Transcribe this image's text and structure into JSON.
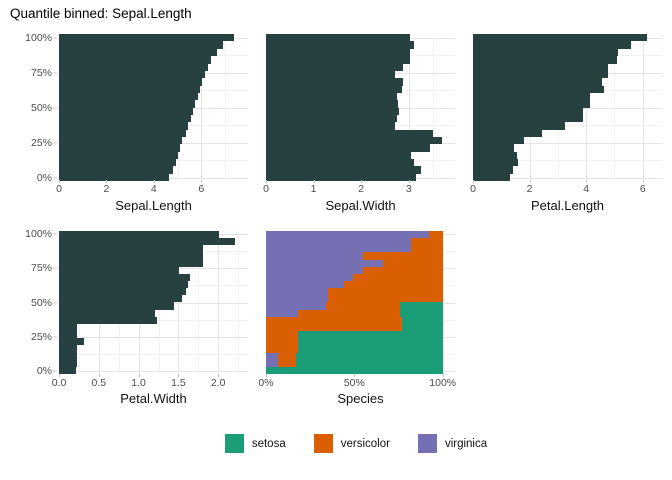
{
  "chart_data": {
    "type": "bar",
    "title": "Quantile binned: Sepal.Length",
    "orientation": "horizontal",
    "description": "Five faceted horizontal bar panels; y axis = Sepal.Length quantile bins (20 bins of 5%, 0% bottom to 100% top). First four panels show the bin value of each numeric variable; the Species panel shows the species composition of each bin as a 100% stacked bar.",
    "bar_color": "#26413f",
    "grid": "on",
    "y_ticks": [
      {
        "p": 0,
        "label": "0%"
      },
      {
        "p": 25,
        "label": "25%"
      },
      {
        "p": 50,
        "label": "50%"
      },
      {
        "p": 75,
        "label": "75%"
      },
      {
        "p": 100,
        "label": "100%"
      }
    ],
    "bin_labels_bottom_to_top": [
      "0-5%",
      "5-10%",
      "10-15%",
      "15-20%",
      "20-25%",
      "25-30%",
      "30-35%",
      "35-40%",
      "40-45%",
      "45-50%",
      "50-55%",
      "55-60%",
      "60-65%",
      "65-70%",
      "70-75%",
      "75-80%",
      "80-85%",
      "85-90%",
      "90-95%",
      "95-100%"
    ],
    "panels": [
      {
        "xlabel": "Sepal.Length",
        "xmax": 7.97,
        "x_ticks": [
          {
            "v": 0,
            "label": "0"
          },
          {
            "v": 2,
            "label": "2"
          },
          {
            "v": 4,
            "label": "4"
          },
          {
            "v": 6,
            "label": "6"
          }
        ],
        "x_minor": [
          1,
          3,
          5,
          7
        ],
        "values": [
          4.65,
          4.8,
          4.95,
          5.0,
          5.1,
          5.2,
          5.35,
          5.45,
          5.55,
          5.65,
          5.75,
          5.85,
          5.95,
          6.05,
          6.15,
          6.28,
          6.4,
          6.65,
          6.9,
          7.4
        ]
      },
      {
        "xlabel": "Sepal.Width",
        "xmax": 3.97,
        "x_ticks": [
          {
            "v": 0,
            "label": "0"
          },
          {
            "v": 1,
            "label": "1"
          },
          {
            "v": 2,
            "label": "2"
          },
          {
            "v": 3,
            "label": "3"
          }
        ],
        "x_minor": [
          0.5,
          1.5,
          2.5,
          3.5
        ],
        "values": [
          3.15,
          3.25,
          3.1,
          3.05,
          3.45,
          3.7,
          3.5,
          2.7,
          2.75,
          2.8,
          2.78,
          2.75,
          2.85,
          2.88,
          2.72,
          2.87,
          3.03,
          3.03,
          3.11,
          3.03
        ]
      },
      {
        "xlabel": "Petal.Length",
        "xmax": 6.68,
        "x_ticks": [
          {
            "v": 0,
            "label": "0"
          },
          {
            "v": 2,
            "label": "2"
          },
          {
            "v": 4,
            "label": "4"
          },
          {
            "v": 6,
            "label": "6"
          }
        ],
        "x_minor": [
          1,
          3,
          5
        ],
        "values": [
          1.3,
          1.4,
          1.6,
          1.55,
          1.45,
          1.8,
          2.45,
          3.25,
          3.9,
          3.9,
          4.13,
          4.13,
          4.63,
          4.56,
          4.77,
          4.77,
          5.08,
          5.12,
          5.57,
          6.15
        ]
      },
      {
        "xlabel": "Petal.Width",
        "xmax": 2.374,
        "x_ticks": [
          {
            "v": 0,
            "label": "0.0"
          },
          {
            "v": 0.5,
            "label": "0.5"
          },
          {
            "v": 1.0,
            "label": "1.0"
          },
          {
            "v": 1.5,
            "label": "1.5"
          },
          {
            "v": 2.0,
            "label": "2.0"
          }
        ],
        "x_minor": [
          0.25,
          0.75,
          1.25,
          1.75,
          2.25
        ],
        "values": [
          0.21,
          0.22,
          0.22,
          0.22,
          0.31,
          0.22,
          0.22,
          1.23,
          1.21,
          1.44,
          1.55,
          1.6,
          1.62,
          1.65,
          1.51,
          1.81,
          1.81,
          1.81,
          2.21,
          2.01
        ]
      },
      {
        "xlabel": "Species",
        "stacked": true,
        "bar_span_fraction": 0.935,
        "x_ticks": [
          {
            "v": 0,
            "label": "0%"
          },
          {
            "v": 50,
            "label": "50%"
          },
          {
            "v": 100,
            "label": "100%"
          }
        ],
        "x_minor": [
          25,
          75
        ],
        "series_left_to_right": [
          "virginica",
          "versicolor",
          "setosa"
        ],
        "series_colors": {
          "virginica": "#7570b3",
          "versicolor": "#d95f02",
          "setosa": "#1b9e77"
        },
        "values": [
          [
            0,
            0,
            100
          ],
          [
            7,
            10,
            83
          ],
          [
            7,
            10,
            83
          ],
          [
            0,
            18,
            82
          ],
          [
            0,
            18,
            82
          ],
          [
            0,
            18,
            82
          ],
          [
            0,
            77,
            23
          ],
          [
            0,
            77,
            23
          ],
          [
            18,
            58,
            24
          ],
          [
            34,
            42,
            24
          ],
          [
            35,
            65,
            0
          ],
          [
            35,
            65,
            0
          ],
          [
            44,
            56,
            0
          ],
          [
            49,
            51,
            0
          ],
          [
            55,
            45,
            0
          ],
          [
            66,
            34,
            0
          ],
          [
            55,
            45,
            0
          ],
          [
            82,
            18,
            0
          ],
          [
            82,
            18,
            0
          ],
          [
            92,
            8,
            0
          ]
        ]
      }
    ],
    "legend": [
      {
        "label": "setosa",
        "color": "#1b9e77"
      },
      {
        "label": "versicolor",
        "color": "#d95f02"
      },
      {
        "label": "virginica",
        "color": "#7570b3"
      }
    ]
  },
  "layout_note": "values arrays run bottom bar (0-5% bin) to top bar (95-100% bin)"
}
